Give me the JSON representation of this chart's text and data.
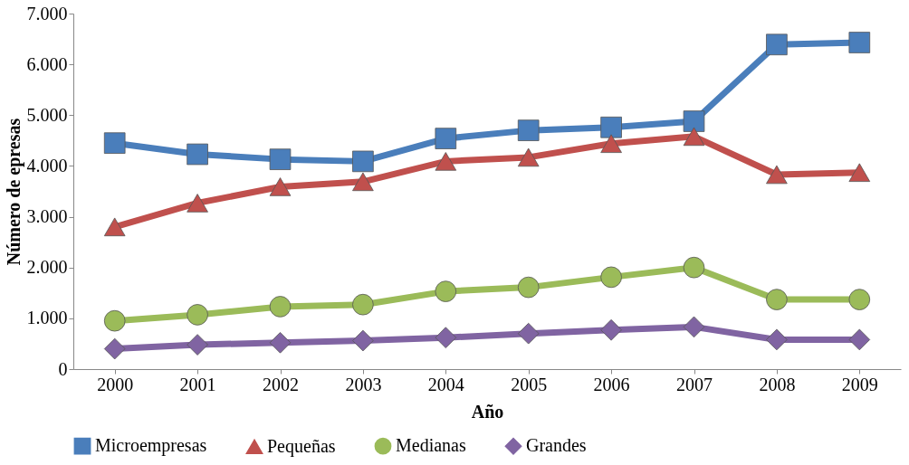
{
  "chart_data": {
    "type": "line",
    "xlabel": "Año",
    "ylabel": "Número de epresas",
    "categories": [
      "2000",
      "2001",
      "2002",
      "2003",
      "2004",
      "2005",
      "2006",
      "2007",
      "2008",
      "2009"
    ],
    "series": [
      {
        "name": "Microempresas",
        "color": "#4a7ebb",
        "marker": "square",
        "values": [
          4450,
          4230,
          4130,
          4090,
          4540,
          4700,
          4760,
          4880,
          6390,
          6430
        ]
      },
      {
        "name": "Pequeñas",
        "color": "#c0504d",
        "marker": "triangle",
        "values": [
          2800,
          3270,
          3590,
          3690,
          4090,
          4170,
          4440,
          4580,
          3830,
          3870
        ]
      },
      {
        "name": "Medianas",
        "color": "#9bbb59",
        "marker": "circle",
        "values": [
          950,
          1070,
          1230,
          1270,
          1530,
          1610,
          1810,
          2000,
          1370,
          1370
        ]
      },
      {
        "name": "Grandes",
        "color": "#8064a2",
        "marker": "diamond",
        "values": [
          400,
          480,
          520,
          560,
          620,
          700,
          770,
          830,
          580,
          580
        ]
      }
    ],
    "ylim": [
      0,
      7000
    ],
    "yticks": [
      {
        "value": 0,
        "label": "0"
      },
      {
        "value": 1000,
        "label": "1.000"
      },
      {
        "value": 2000,
        "label": "2.000"
      },
      {
        "value": 3000,
        "label": "3.000"
      },
      {
        "value": 4000,
        "label": "4.000"
      },
      {
        "value": 5000,
        "label": "5.000"
      },
      {
        "value": 6000,
        "label": "6.000"
      },
      {
        "value": 7000,
        "label": "7.000"
      }
    ],
    "grid": false,
    "legend": "bottom",
    "line_style": "solid"
  }
}
